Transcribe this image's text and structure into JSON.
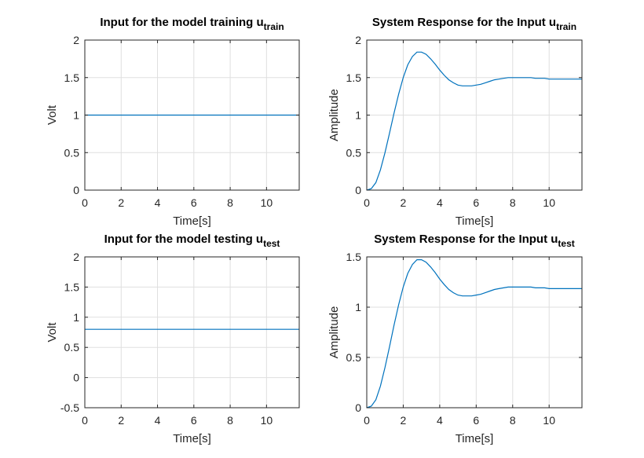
{
  "chart_data": [
    {
      "type": "line",
      "title": "Input for the model training u",
      "title_sub": "train",
      "xlabel": "Time[s]",
      "ylabel": "Volt",
      "xlim": [
        0,
        11.8
      ],
      "ylim": [
        0,
        2
      ],
      "xticks": [
        0,
        2,
        4,
        6,
        8,
        10
      ],
      "xtick_labels": [
        "0",
        "2",
        "4",
        "6",
        "8",
        "10"
      ],
      "yticks": [
        0,
        0.5,
        1,
        1.5,
        2
      ],
      "ytick_labels": [
        "0",
        "0.5",
        "1",
        "1.5",
        "2"
      ],
      "grid": true,
      "color": "#0072bd",
      "x": [
        0,
        11.8
      ],
      "y": [
        1,
        1
      ]
    },
    {
      "type": "line",
      "title": "System Response for the Input u",
      "title_sub": "train",
      "xlabel": "Time[s]",
      "ylabel": "Amplitude",
      "xlim": [
        0,
        11.8
      ],
      "ylim": [
        0,
        2
      ],
      "xticks": [
        0,
        2,
        4,
        6,
        8,
        10
      ],
      "xtick_labels": [
        "0",
        "2",
        "4",
        "6",
        "8",
        "10"
      ],
      "yticks": [
        0,
        0.5,
        1,
        1.5,
        2
      ],
      "ytick_labels": [
        "0",
        "0.5",
        "1",
        "1.5",
        "2"
      ],
      "grid": true,
      "color": "#0072bd",
      "x": [
        0,
        0.25,
        0.5,
        0.75,
        1.0,
        1.25,
        1.5,
        1.75,
        2.0,
        2.25,
        2.5,
        2.75,
        3.0,
        3.25,
        3.5,
        3.75,
        4.0,
        4.25,
        4.5,
        4.75,
        5.0,
        5.25,
        5.5,
        5.75,
        6.0,
        6.25,
        6.5,
        6.75,
        7.0,
        7.25,
        7.5,
        7.75,
        8.0,
        8.25,
        8.5,
        8.75,
        9.0,
        9.25,
        9.5,
        9.75,
        10.0,
        10.25,
        10.5,
        10.75,
        11.0,
        11.25,
        11.5,
        11.8
      ],
      "y": [
        0,
        0.02,
        0.1,
        0.27,
        0.5,
        0.76,
        1.03,
        1.28,
        1.5,
        1.67,
        1.78,
        1.84,
        1.84,
        1.81,
        1.75,
        1.68,
        1.6,
        1.53,
        1.47,
        1.43,
        1.4,
        1.39,
        1.39,
        1.39,
        1.4,
        1.41,
        1.43,
        1.45,
        1.47,
        1.48,
        1.49,
        1.5,
        1.5,
        1.5,
        1.5,
        1.5,
        1.5,
        1.49,
        1.49,
        1.49,
        1.48,
        1.48,
        1.48,
        1.48,
        1.48,
        1.48,
        1.48,
        1.48
      ]
    },
    {
      "type": "line",
      "title": "Input for the model testing u",
      "title_sub": "test",
      "xlabel": "Time[s]",
      "ylabel": "Volt",
      "xlim": [
        0,
        11.8
      ],
      "ylim": [
        -0.5,
        2
      ],
      "xticks": [
        0,
        2,
        4,
        6,
        8,
        10
      ],
      "xtick_labels": [
        "0",
        "2",
        "4",
        "6",
        "8",
        "10"
      ],
      "yticks": [
        -0.5,
        0,
        0.5,
        1,
        1.5,
        2
      ],
      "ytick_labels": [
        "-0.5",
        "0",
        "0.5",
        "1",
        "1.5",
        "2"
      ],
      "grid": true,
      "color": "#0072bd",
      "x": [
        0,
        11.8
      ],
      "y": [
        0.8,
        0.8
      ]
    },
    {
      "type": "line",
      "title": "System Response for the Input u",
      "title_sub": "test",
      "xlabel": "Time[s]",
      "ylabel": "Amplitude",
      "xlim": [
        0,
        11.8
      ],
      "ylim": [
        0,
        1.5
      ],
      "xticks": [
        0,
        2,
        4,
        6,
        8,
        10
      ],
      "xtick_labels": [
        "0",
        "2",
        "4",
        "6",
        "8",
        "10"
      ],
      "yticks": [
        0,
        0.5,
        1,
        1.5
      ],
      "ytick_labels": [
        "0",
        "0.5",
        "1",
        "1.5"
      ],
      "grid": true,
      "color": "#0072bd",
      "x": [
        0,
        0.25,
        0.5,
        0.75,
        1.0,
        1.25,
        1.5,
        1.75,
        2.0,
        2.25,
        2.5,
        2.75,
        3.0,
        3.25,
        3.5,
        3.75,
        4.0,
        4.25,
        4.5,
        4.75,
        5.0,
        5.25,
        5.5,
        5.75,
        6.0,
        6.25,
        6.5,
        6.75,
        7.0,
        7.25,
        7.5,
        7.75,
        8.0,
        8.25,
        8.5,
        8.75,
        9.0,
        9.25,
        9.5,
        9.75,
        10.0,
        10.25,
        10.5,
        10.75,
        11.0,
        11.25,
        11.5,
        11.8
      ],
      "y": [
        0,
        0.016,
        0.08,
        0.216,
        0.4,
        0.608,
        0.824,
        1.024,
        1.2,
        1.336,
        1.424,
        1.472,
        1.472,
        1.448,
        1.4,
        1.344,
        1.28,
        1.224,
        1.176,
        1.144,
        1.12,
        1.112,
        1.112,
        1.112,
        1.12,
        1.128,
        1.144,
        1.16,
        1.176,
        1.184,
        1.192,
        1.2,
        1.2,
        1.2,
        1.2,
        1.2,
        1.2,
        1.192,
        1.192,
        1.192,
        1.184,
        1.184,
        1.184,
        1.184,
        1.184,
        1.184,
        1.184,
        1.184
      ]
    }
  ]
}
